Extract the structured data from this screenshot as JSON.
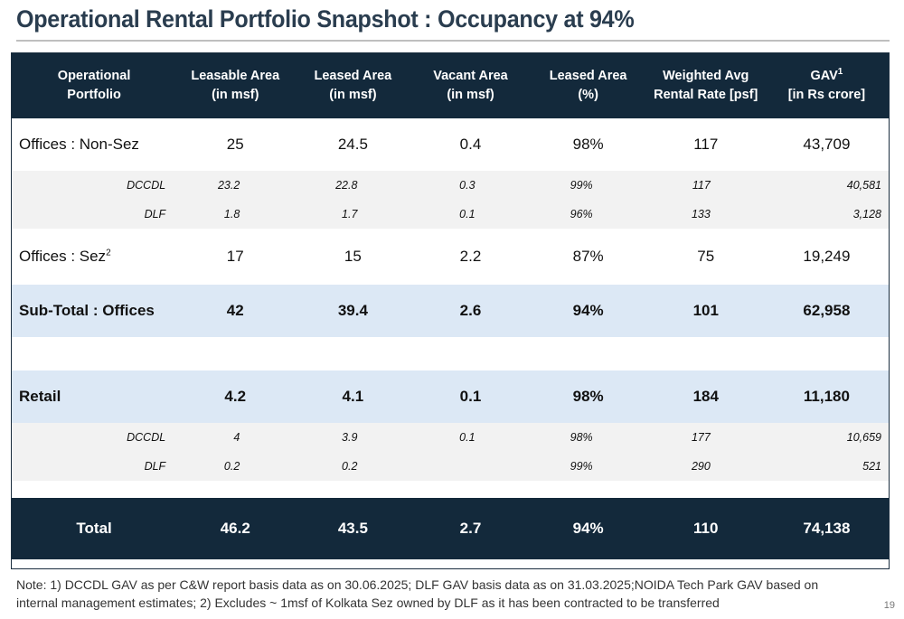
{
  "title": "Operational Rental Portfolio Snapshot : Occupancy at 94%",
  "headers": [
    [
      "Operational",
      "Portfolio"
    ],
    [
      "Leasable Area",
      "(in msf)"
    ],
    [
      "Leased Area",
      "(in msf)"
    ],
    [
      "Vacant Area",
      "(in msf)"
    ],
    [
      "Leased Area",
      "(%)"
    ],
    [
      "Weighted Avg",
      "Rental Rate [psf]"
    ],
    [
      "GAV",
      "[in Rs crore]"
    ]
  ],
  "header_gav_sup": "1",
  "rows": {
    "offices_nonsez": {
      "label": "Offices : Non-Sez",
      "values": [
        "25",
        "24.5",
        "0.4",
        "98%",
        "117",
        "43,709"
      ]
    },
    "nonsez_dccdl": {
      "label": "DCCDL",
      "values": [
        "23.2",
        "22.8",
        "0.3",
        "99%",
        "117",
        "40,581"
      ]
    },
    "nonsez_dlf": {
      "label": "DLF",
      "values": [
        "1.8",
        "1.7",
        "0.1",
        "96%",
        "133",
        "3,128"
      ]
    },
    "offices_sez": {
      "label": "Offices : Sez",
      "sup": "2",
      "values": [
        "17",
        "15",
        "2.2",
        "87%",
        "75",
        "19,249"
      ]
    },
    "subtotal": {
      "label": "Sub-Total : Offices",
      "values": [
        "42",
        "39.4",
        "2.6",
        "94%",
        "101",
        "62,958"
      ]
    },
    "retail": {
      "label": "Retail",
      "values": [
        "4.2",
        "4.1",
        "0.1",
        "98%",
        "184",
        "11,180"
      ]
    },
    "retail_dccdl": {
      "label": "DCCDL",
      "values": [
        "4",
        "3.9",
        "0.1",
        "98%",
        "177",
        "10,659"
      ]
    },
    "retail_dlf": {
      "label": "DLF",
      "values": [
        "0.2",
        "0.2",
        "",
        "99%",
        "290",
        "521"
      ]
    },
    "total": {
      "label": "Total",
      "values": [
        "46.2",
        "43.5",
        "2.7",
        "94%",
        "110",
        "74,138"
      ]
    }
  },
  "note": "Note: 1) DCCDL GAV as per C&W report basis data as on 30.06.2025; DLF GAV basis data as on 31.03.2025;NOIDA Tech Park GAV based on internal management estimates; 2) Excludes ~ 1msf of Kolkata Sez owned by DLF as it has been contracted to be transferred",
  "page_number": "19"
}
